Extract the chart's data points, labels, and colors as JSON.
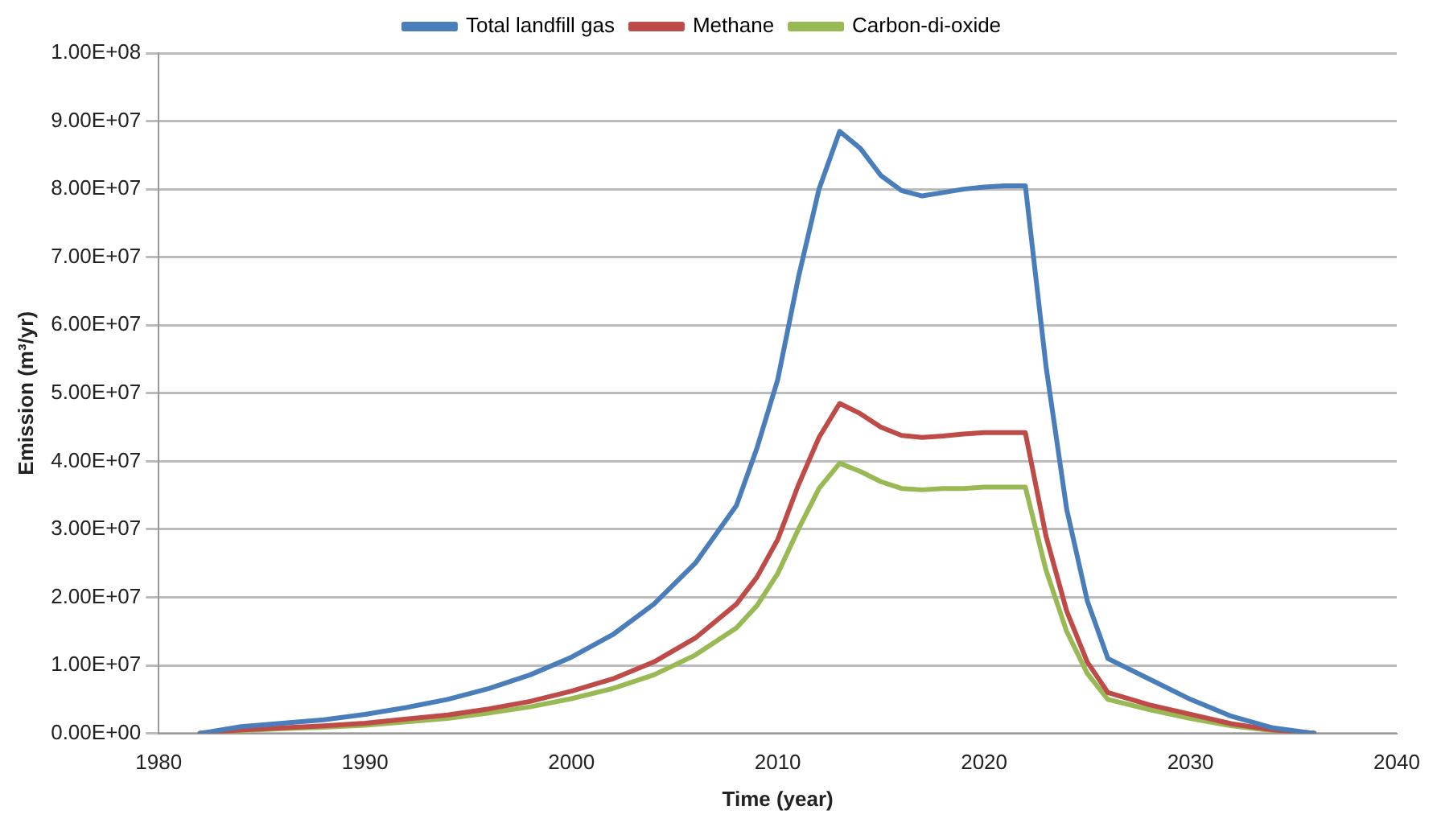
{
  "chart_data": {
    "type": "line",
    "xlabel": "Time (year)",
    "ylabel": "Emission (m³/yr)",
    "legend": "top",
    "grid": "y",
    "marker": "none",
    "line_style": "solid",
    "xlim": [
      1980,
      2040
    ],
    "xticks": [
      1980,
      1990,
      2000,
      2010,
      2020,
      2030,
      2040
    ],
    "ylim": [
      0,
      100000000.0
    ],
    "yticks": [
      {
        "value": 0,
        "label": "0.00E+00"
      },
      {
        "value": 10000000.0,
        "label": "1.00E+07"
      },
      {
        "value": 20000000.0,
        "label": "2.00E+07"
      },
      {
        "value": 30000000.0,
        "label": "3.00E+07"
      },
      {
        "value": 40000000.0,
        "label": "4.00E+07"
      },
      {
        "value": 50000000.0,
        "label": "5.00E+07"
      },
      {
        "value": 60000000.0,
        "label": "6.00E+07"
      },
      {
        "value": 70000000.0,
        "label": "7.00E+07"
      },
      {
        "value": 80000000.0,
        "label": "8.00E+07"
      },
      {
        "value": 90000000.0,
        "label": "9.00E+07"
      },
      {
        "value": 100000000.0,
        "label": "1.00E+08"
      }
    ],
    "x": [
      1982,
      1984,
      1986,
      1988,
      1990,
      1992,
      1994,
      1996,
      1998,
      2000,
      2002,
      2004,
      2006,
      2008,
      2009,
      2010,
      2011,
      2012,
      2013,
      2014,
      2015,
      2016,
      2017,
      2018,
      2019,
      2020,
      2021,
      2022,
      2023,
      2024,
      2025,
      2026,
      2028,
      2030,
      2032,
      2034,
      2036
    ],
    "series": [
      {
        "name": "Total landfill gas",
        "color": "#4a7ebb",
        "values": [
          0,
          1000000.0,
          1500000.0,
          2000000.0,
          2800000.0,
          3800000.0,
          5000000.0,
          6600000.0,
          8600000.0,
          11200000.0,
          14500000.0,
          19000000.0,
          25000000.0,
          33500000.0,
          42000000.0,
          52000000.0,
          67000000.0,
          80000000.0,
          88500000.0,
          86000000.0,
          82000000.0,
          79800000.0,
          79000000.0,
          79500000.0,
          80000000.0,
          80300000.0,
          80500000.0,
          80500000.0,
          54000000.0,
          33000000.0,
          19500000.0,
          11000000.0,
          8000000.0,
          5000000.0,
          2500000.0,
          800000.0,
          0
        ]
      },
      {
        "name": "Methane",
        "color": "#be4b48",
        "values": [
          0,
          500000.0,
          800000.0,
          1100000.0,
          1500000.0,
          2100000.0,
          2700000.0,
          3600000.0,
          4700000.0,
          6200000.0,
          8000000.0,
          10500000.0,
          14000000.0,
          19000000.0,
          23000000.0,
          28500000.0,
          36500000.0,
          43500000.0,
          48500000.0,
          47000000.0,
          45000000.0,
          43800000.0,
          43500000.0,
          43700000.0,
          44000000.0,
          44200000.0,
          44200000.0,
          44200000.0,
          29000000.0,
          18000000.0,
          10500000.0,
          6000000.0,
          4200000.0,
          2800000.0,
          1400000.0,
          500000.0,
          0
        ]
      },
      {
        "name": "Carbon-di-oxide",
        "color": "#98b954",
        "values": [
          0,
          400000.0,
          700000.0,
          900000.0,
          1200000.0,
          1700000.0,
          2200000.0,
          3000000.0,
          3900000.0,
          5100000.0,
          6600000.0,
          8600000.0,
          11500000.0,
          15500000.0,
          18800000.0,
          23500000.0,
          30000000.0,
          36000000.0,
          39700000.0,
          38500000.0,
          37000000.0,
          36000000.0,
          35800000.0,
          36000000.0,
          36000000.0,
          36200000.0,
          36200000.0,
          36200000.0,
          24000000.0,
          15000000.0,
          8800000.0,
          5000000.0,
          3500000.0,
          2200000.0,
          1100000.0,
          400000.0,
          0
        ]
      }
    ]
  }
}
